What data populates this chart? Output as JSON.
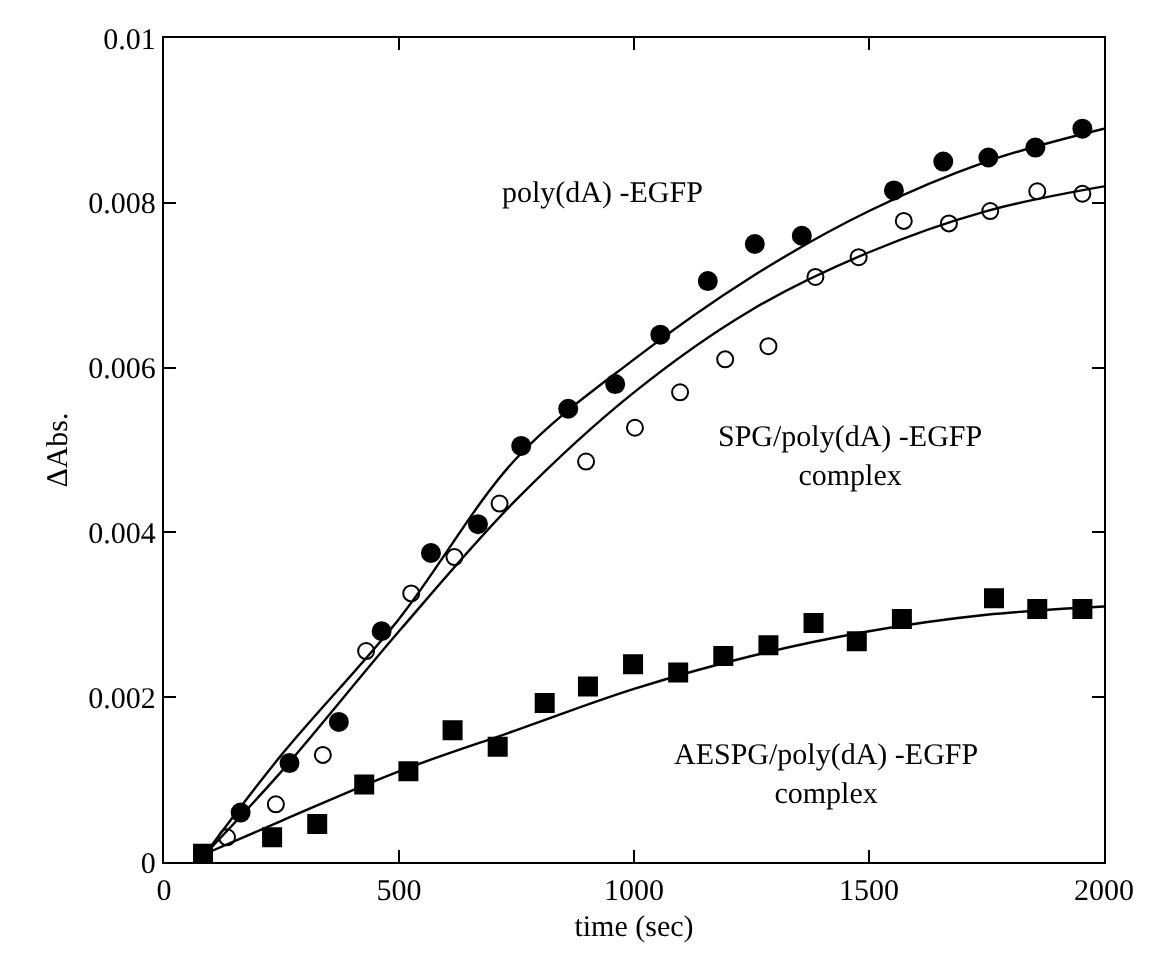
{
  "chart_data": {
    "type": "scatter",
    "xlabel": "time (sec)",
    "ylabel": "ΔAbs.",
    "xlim": [
      0,
      2000
    ],
    "xticks": [
      0,
      500,
      1000,
      1500,
      2000
    ],
    "ylim": [
      0,
      0.01
    ],
    "yticks": [
      0,
      0.002,
      0.004,
      0.006,
      0.008,
      0.01
    ],
    "series": [
      {
        "marker": "circle",
        "color": "#000000",
        "x": [
          163,
          267,
          372,
          463,
          568,
          668,
          760,
          860,
          960,
          1056,
          1157,
          1257,
          1357,
          1553,
          1658,
          1754,
          1854,
          1954
        ],
        "values": [
          0.0006,
          0.0012,
          0.0017,
          0.0028,
          0.00375,
          0.0041,
          0.00505,
          0.0055,
          0.0058,
          0.0064,
          0.00705,
          0.0075,
          0.0076,
          0.00815,
          0.0085,
          0.00855,
          0.00867,
          0.0089
        ]
      },
      {
        "marker": "circle-open",
        "color": "#000000",
        "x": [
          134,
          238,
          338,
          430,
          526,
          618,
          714,
          898,
          1002,
          1098,
          1194,
          1286,
          1386,
          1478,
          1574,
          1670,
          1758,
          1858,
          1954
        ],
        "values": [
          0.0003,
          0.0007,
          0.0013,
          0.00256,
          0.00326,
          0.0037,
          0.00435,
          0.00486,
          0.00527,
          0.0057,
          0.0061,
          0.00626,
          0.0071,
          0.00734,
          0.00778,
          0.00775,
          0.0079,
          0.00814,
          0.00811
        ]
      },
      {
        "marker": "square",
        "color": "#000000",
        "x": [
          83,
          230,
          326,
          426,
          520,
          614,
          710,
          810,
          902,
          998,
          1094,
          1190,
          1286,
          1382,
          1474,
          1570,
          1766,
          1858,
          1954
        ],
        "values": [
          0.0001,
          0.0003,
          0.00046,
          0.00094,
          0.0011,
          0.0016,
          0.0014,
          0.00193,
          0.00213,
          0.0024,
          0.0023,
          0.0025,
          0.00263,
          0.0029,
          0.00268,
          0.00295,
          0.0032,
          0.00307,
          0.00307
        ]
      },
      {
        "type": "line",
        "marker": "none",
        "line_style": "solid",
        "color": "#000000",
        "x": [
          88,
          250,
          500,
          750,
          1000,
          1250,
          1500,
          1750,
          2000
        ],
        "values": [
          0.0001,
          0.0013,
          0.00295,
          0.0049,
          0.0061,
          0.0071,
          0.0079,
          0.0085,
          0.0089
        ]
      },
      {
        "type": "line",
        "marker": "none",
        "line_style": "solid",
        "color": "#000000",
        "x": [
          88,
          250,
          500,
          750,
          1000,
          1250,
          1500,
          1750,
          2000
        ],
        "values": [
          0.0001,
          0.0011,
          0.0028,
          0.0044,
          0.0057,
          0.0067,
          0.0074,
          0.0079,
          0.0082
        ]
      },
      {
        "type": "line",
        "marker": "none",
        "line_style": "solid",
        "color": "#000000",
        "x": [
          88,
          250,
          500,
          750,
          1000,
          1250,
          1500,
          1750,
          2000
        ],
        "values": [
          0.0001,
          0.0005,
          0.0011,
          0.0016,
          0.0021,
          0.0025,
          0.0028,
          0.003,
          0.0031
        ]
      }
    ],
    "annotations": [
      "poly(dA) -EGFP",
      "SPG/poly(dA) -EGFP\ncomplex",
      "AESPG/poly(dA) -EGFP\ncomplex"
    ]
  }
}
